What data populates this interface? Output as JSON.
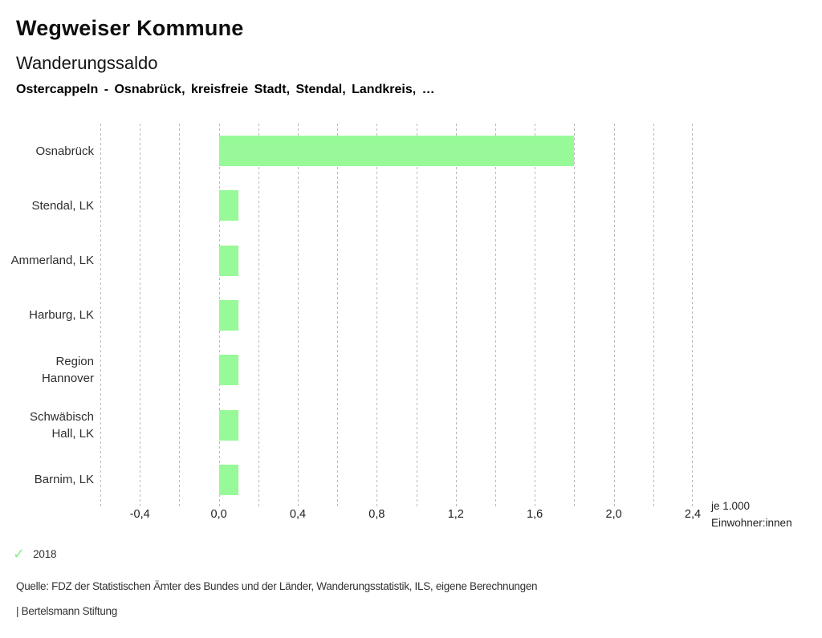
{
  "header": {
    "title": "Wegweiser Kommune",
    "subtitle": "Wanderungssaldo",
    "selection": "Ostercappeln - Osnabrück, kreisfreie Stadt, Stendal, Landkreis, …"
  },
  "chart_data": {
    "type": "bar",
    "orientation": "horizontal",
    "title": "Wanderungssaldo",
    "categories": [
      "Osnabrück",
      "Stendal, LK",
      "Ammerland, LK",
      "Harburg, LK",
      "Region Hannover",
      "Schwäbisch Hall, LK",
      "Barnim, LK"
    ],
    "category_display_lines": [
      [
        "Osnabrück"
      ],
      [
        "Stendal, LK"
      ],
      [
        "Ammerland, LK"
      ],
      [
        "Harburg, LK"
      ],
      [
        "Region",
        "Hannover"
      ],
      [
        "Schwäbisch",
        "Hall, LK"
      ],
      [
        "Barnim, LK"
      ]
    ],
    "series": [
      {
        "name": "2018",
        "values": [
          1.8,
          0.1,
          0.1,
          0.1,
          0.1,
          0.1,
          0.1
        ]
      }
    ],
    "xlim": [
      -0.6,
      2.4
    ],
    "grid_step": 0.2,
    "grid_style": "vertical-dashed",
    "x_ticks": [
      {
        "value": -0.4,
        "label": "-0,4"
      },
      {
        "value": 0.0,
        "label": "0,0"
      },
      {
        "value": 0.4,
        "label": "0,4"
      },
      {
        "value": 0.8,
        "label": "0,8"
      },
      {
        "value": 1.2,
        "label": "1,2"
      },
      {
        "value": 1.6,
        "label": "1,6"
      },
      {
        "value": 2.0,
        "label": "2,0"
      },
      {
        "value": 2.4,
        "label": "2,4"
      }
    ],
    "xlabel_line1": "je 1.000",
    "xlabel_line2": "Einwohner:innen",
    "bar_color": "#98f998",
    "legend_position": "bottom-left"
  },
  "legend": {
    "marker": "check-icon",
    "marker_color": "#8dea8d",
    "label": "2018"
  },
  "footer": {
    "source": "Quelle: FDZ der Statistischen Ämter des Bundes und der Länder, Wanderungsstatistik, ILS, eigene Berechnungen",
    "branding": "| Bertelsmann Stiftung"
  }
}
